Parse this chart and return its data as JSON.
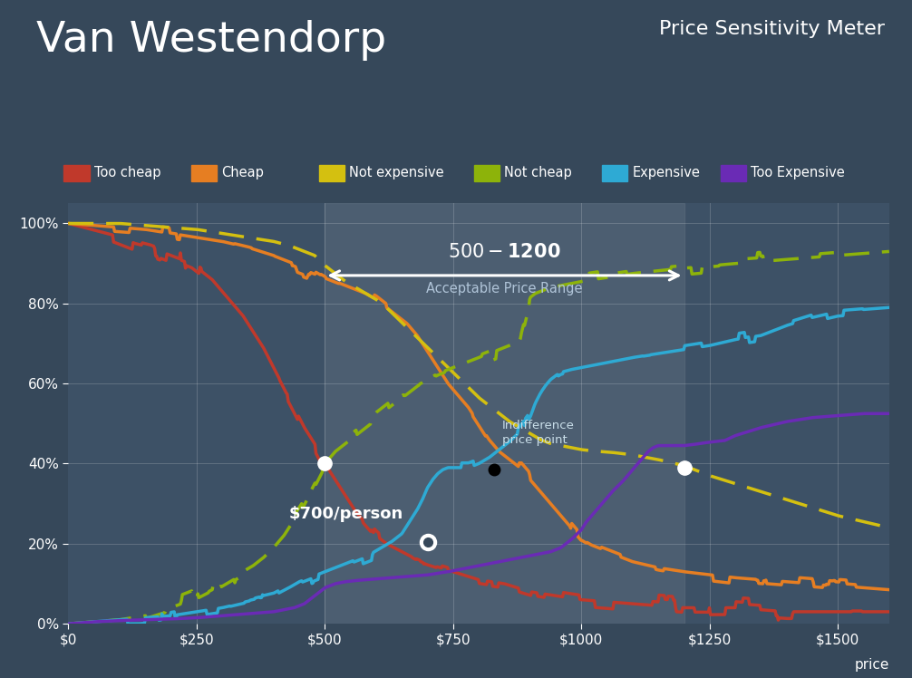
{
  "title_left": "Van Westendorp",
  "title_right": "Price Sensitivity Meter",
  "background_color": "#36485a",
  "plot_bg_color": "#3d5166",
  "shaded_region_color": "#5a7080",
  "x_min": 0,
  "x_max": 1600,
  "y_min": 0,
  "y_max": 1.05,
  "x_ticks": [
    0,
    250,
    500,
    750,
    1000,
    1250,
    1500
  ],
  "x_tick_labels": [
    "$0",
    "$250",
    "$500",
    "$750",
    "$1000",
    "$1250",
    "$1500"
  ],
  "y_ticks": [
    0.0,
    0.2,
    0.4,
    0.6,
    0.8,
    1.0
  ],
  "y_tick_labels": [
    "0%",
    "20%",
    "40%",
    "60%",
    "80%",
    "100%"
  ],
  "acceptable_range_low": 500,
  "acceptable_range_high": 1200,
  "legend_labels": [
    "Too cheap",
    "Cheap",
    "Not expensive",
    "Not cheap",
    "Expensive",
    "Too Expensive"
  ],
  "colors": {
    "too_cheap": "#c0392b",
    "cheap": "#e67e22",
    "not_expensive": "#d4c010",
    "not_cheap": "#8db30a",
    "expensive": "#2eaad4",
    "too_expensive": "#6a2bb5"
  },
  "annotation_range_text": "$500 - $1200",
  "annotation_range_sub": "Acceptable Price Range",
  "annotation_indiff": "Indifference\nprice point",
  "annotation_optimal": "$700/person",
  "price_label": "price"
}
